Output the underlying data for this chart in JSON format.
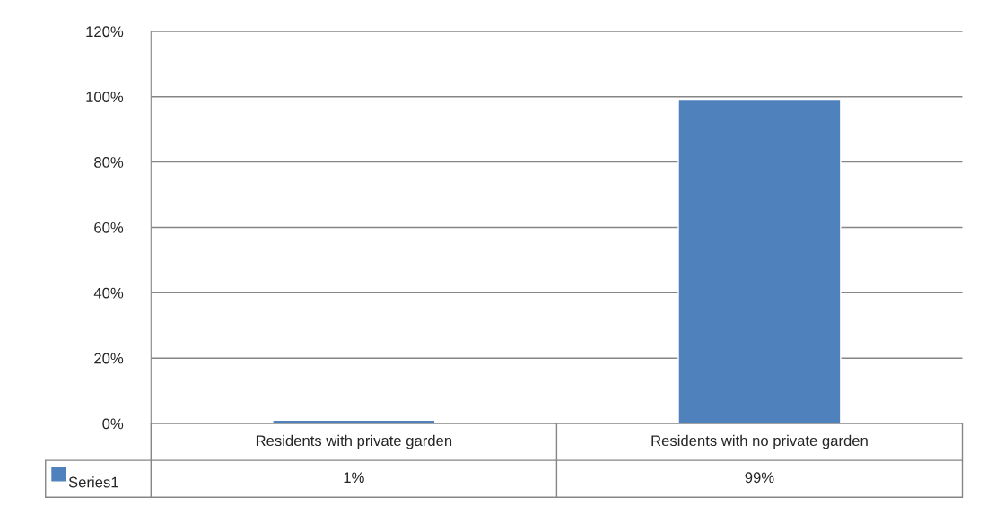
{
  "chart_data": {
    "type": "bar",
    "categories": [
      "Residents with private garden",
      "Residents with no private garden"
    ],
    "series": [
      {
        "name": "Series1",
        "color": "#4f81bd",
        "values": [
          1,
          99
        ],
        "value_labels": [
          "1%",
          "99%"
        ]
      }
    ],
    "ylim": [
      0,
      120
    ],
    "yticks": [
      {
        "value": 0,
        "label": "0%"
      },
      {
        "value": 20,
        "label": "20%"
      },
      {
        "value": 40,
        "label": "40%"
      },
      {
        "value": 60,
        "label": "60%"
      },
      {
        "value": 80,
        "label": "80%"
      },
      {
        "value": 100,
        "label": "100%"
      },
      {
        "value": 120,
        "label": "120%"
      }
    ],
    "grid": "y",
    "legend": "bottom"
  }
}
